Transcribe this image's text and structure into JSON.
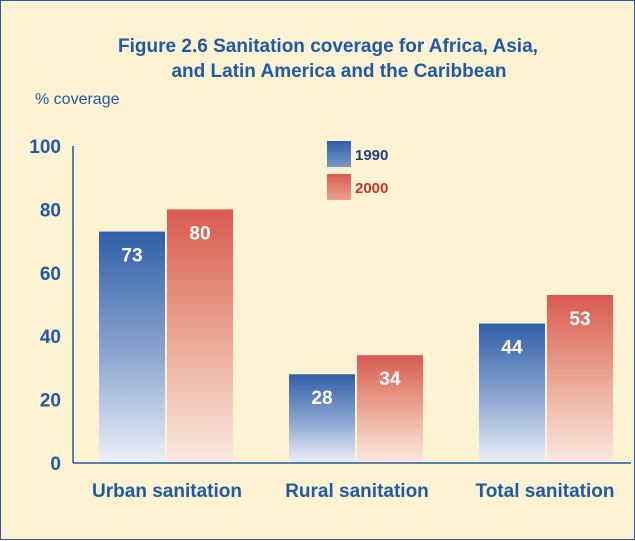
{
  "chart_data": {
    "type": "bar",
    "title_lines": [
      "Figure 2.6   Sanitation coverage for Africa, Asia,",
      "and Latin America and the Caribbean"
    ],
    "ylabel": "% coverage",
    "xlabel": "",
    "ylim": [
      0,
      100
    ],
    "yticks": [
      "0",
      "20",
      "40",
      "60",
      "80",
      "100"
    ],
    "categories": [
      "Urban sanitation",
      "Rural sanitation",
      "Total sanitation"
    ],
    "series": [
      {
        "name": "1990",
        "values": [
          73,
          28,
          44
        ],
        "color": "#2f5fa8"
      },
      {
        "name": "2000",
        "values": [
          80,
          34,
          53
        ],
        "color": "#d95a50"
      }
    ],
    "legend_position": "top-center",
    "grid": false,
    "background_color": "#fdf3d3",
    "text_color": "#1f5aa6"
  }
}
